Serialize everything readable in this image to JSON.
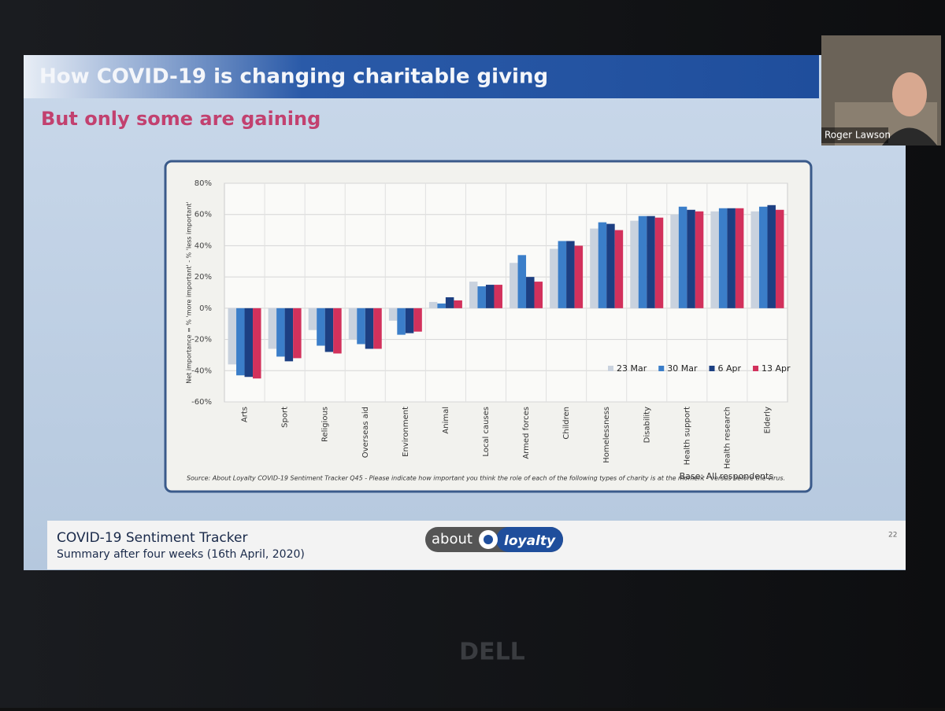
{
  "slide": {
    "title": "How COVID-19 is changing charitable giving",
    "subtitle": "But only some are gaining",
    "footer_title": "COVID-19 Sentiment Tracker",
    "footer_subtitle": "Summary after four weeks (16th April, 2020)",
    "logo_left": "about",
    "logo_right": "loyalty",
    "page_number": "22"
  },
  "video": {
    "participant": "Roger Lawson"
  },
  "monitor": {
    "brand": "DELL"
  },
  "chart_data": {
    "type": "bar",
    "y_label": "Net importance = % 'more important' - % 'less important'",
    "source": "Source: About Loyalty COVID-19 Sentiment Tracker Q45 - Please indicate how important you think the role of each of the following types of charity is at the moment - versus before the virus.",
    "base": "Base: All respondents",
    "categories": [
      "Arts",
      "Sport",
      "Religious",
      "Overseas aid",
      "Environment",
      "Animal",
      "Local causes",
      "Armed forces",
      "Children",
      "Homelessness",
      "Disability",
      "Health support",
      "Health research",
      "Elderly"
    ],
    "series": [
      {
        "name": "23 Mar",
        "color": "#c9d2de",
        "values": [
          -36,
          -26,
          -14,
          -20,
          -8,
          4,
          17,
          29,
          38,
          51,
          56,
          60,
          62,
          62
        ]
      },
      {
        "name": "30 Mar",
        "color": "#3b7ec9",
        "values": [
          -43,
          -31,
          -24,
          -23,
          -17,
          3,
          14,
          34,
          43,
          55,
          59,
          65,
          64,
          65
        ]
      },
      {
        "name": "6 Apr",
        "color": "#1c3f82",
        "values": [
          -44,
          -34,
          -28,
          -26,
          -16,
          7,
          15,
          20,
          43,
          54,
          59,
          63,
          64,
          66
        ]
      },
      {
        "name": "13 Apr",
        "color": "#d2315c",
        "values": [
          -45,
          -32,
          -29,
          -26,
          -15,
          5,
          15,
          17,
          40,
          50,
          58,
          62,
          64,
          63
        ]
      }
    ],
    "ylim": [
      -60,
      80
    ],
    "yticks": [
      {
        "value": -60,
        "label": "-60%"
      },
      {
        "value": -40,
        "label": "-40%"
      },
      {
        "value": -20,
        "label": "-20%"
      },
      {
        "value": 0,
        "label": "0%"
      },
      {
        "value": 20,
        "label": "20%"
      },
      {
        "value": 40,
        "label": "40%"
      },
      {
        "value": 60,
        "label": "60%"
      },
      {
        "value": 80,
        "label": "80%"
      }
    ],
    "grid": true,
    "legend": "lower right"
  }
}
